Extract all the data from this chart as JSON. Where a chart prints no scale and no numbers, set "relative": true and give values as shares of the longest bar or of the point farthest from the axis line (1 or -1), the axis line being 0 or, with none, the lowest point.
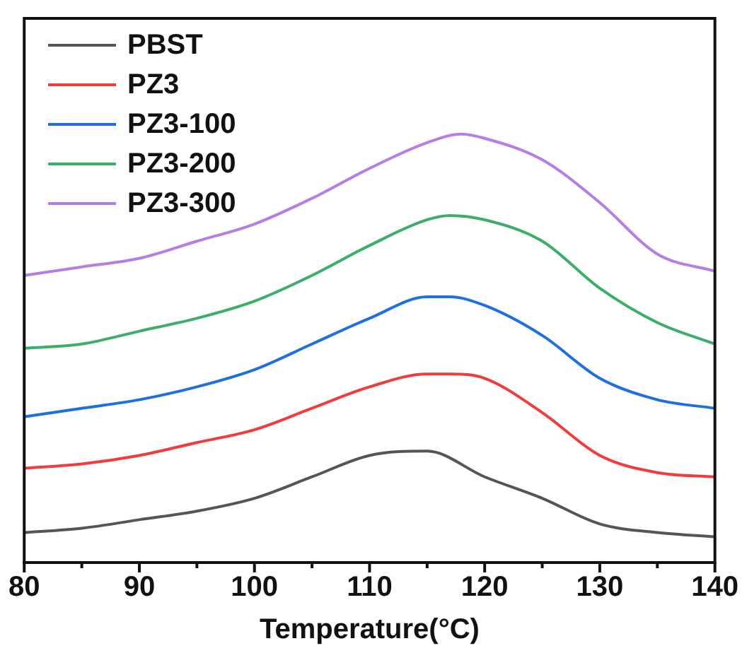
{
  "chart_data": {
    "type": "line",
    "relative": true,
    "xlabel": "Temperature(°C)",
    "xlim": [
      80,
      140
    ],
    "xticks": [
      80,
      {
        "value": 85,
        "label": null
      },
      90,
      {
        "value": 95,
        "label": null
      },
      100,
      {
        "value": 105,
        "label": null
      },
      110,
      {
        "value": 115,
        "label": null
      },
      120,
      {
        "value": 125,
        "label": null
      },
      130,
      {
        "value": 135,
        "label": null
      },
      140
    ],
    "legend": "top left",
    "grid": false,
    "marker": "none",
    "line_style": "solid",
    "series": [
      {
        "name": "PBST",
        "color": "#555555",
        "x": [
          80,
          85,
          90,
          95,
          100,
          105,
          110,
          115,
          120,
          125,
          130,
          135,
          140
        ],
        "values": [
          0.07,
          0.08,
          0.1,
          0.12,
          0.15,
          0.2,
          0.25,
          0.26,
          0.2,
          0.15,
          0.09,
          0.07,
          0.06
        ]
      },
      {
        "name": "PZ3",
        "color": "#f03c3c",
        "x": [
          80,
          85,
          90,
          95,
          100,
          105,
          110,
          115,
          117,
          120,
          125,
          130,
          135,
          140
        ],
        "values": [
          0.22,
          0.23,
          0.25,
          0.28,
          0.31,
          0.36,
          0.41,
          0.44,
          0.44,
          0.43,
          0.35,
          0.25,
          0.21,
          0.2
        ]
      },
      {
        "name": "PZ3-100",
        "color": "#1f6fe0",
        "x": [
          80,
          85,
          90,
          95,
          100,
          105,
          110,
          115,
          117,
          120,
          125,
          130,
          135,
          140
        ],
        "values": [
          0.34,
          0.36,
          0.38,
          0.41,
          0.45,
          0.51,
          0.57,
          0.62,
          0.62,
          0.6,
          0.53,
          0.43,
          0.38,
          0.36
        ]
      },
      {
        "name": "PZ3-200",
        "color": "#3cae6a",
        "x": [
          80,
          85,
          90,
          95,
          100,
          105,
          110,
          115,
          117,
          120,
          125,
          130,
          135,
          140
        ],
        "values": [
          0.5,
          0.51,
          0.54,
          0.57,
          0.61,
          0.67,
          0.74,
          0.8,
          0.81,
          0.8,
          0.75,
          0.64,
          0.56,
          0.51
        ]
      },
      {
        "name": "PZ3-300",
        "color": "#b57ee6",
        "x": [
          80,
          85,
          90,
          95,
          100,
          105,
          110,
          115,
          118,
          120,
          125,
          130,
          135,
          140
        ],
        "values": [
          0.67,
          0.69,
          0.71,
          0.75,
          0.79,
          0.85,
          0.92,
          0.98,
          1,
          0.99,
          0.94,
          0.84,
          0.72,
          0.68
        ]
      }
    ]
  }
}
